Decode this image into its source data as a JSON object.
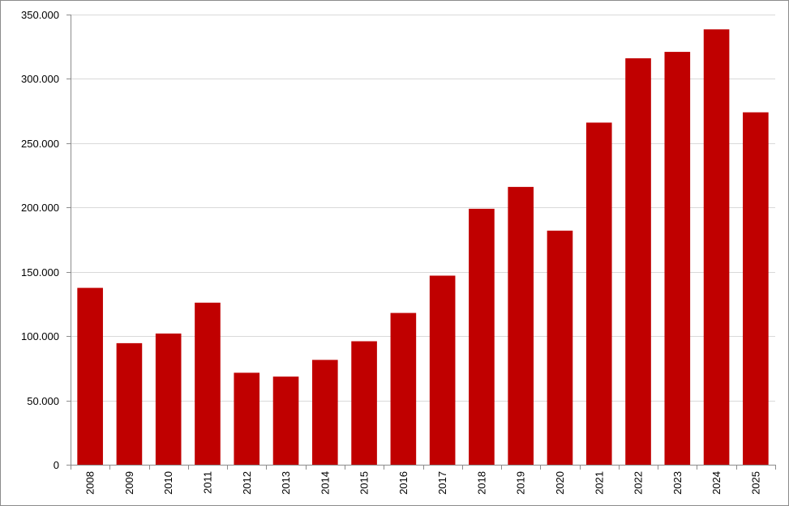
{
  "chart_data": {
    "type": "bar",
    "title": "",
    "xlabel": "",
    "ylabel": "",
    "categories": [
      "2008",
      "2009",
      "2010",
      "2011",
      "2012",
      "2013",
      "2014",
      "2015",
      "2016",
      "2017",
      "2018",
      "2019",
      "2020",
      "2021",
      "2022",
      "2023",
      "2024",
      "2025"
    ],
    "values": [
      137500,
      94500,
      102000,
      126000,
      71500,
      68500,
      81500,
      96000,
      118000,
      147000,
      199000,
      216000,
      182000,
      266000,
      316000,
      321000,
      338500,
      274000
    ],
    "ylim": [
      0,
      350000
    ],
    "yticks": [
      0,
      50000,
      100000,
      150000,
      200000,
      250000,
      300000,
      350000
    ],
    "ytick_labels": [
      "0",
      "50.000",
      "100.000",
      "150.000",
      "200.000",
      "250.000",
      "300.000",
      "350.000"
    ],
    "bar_color": "#c00000",
    "grid": true,
    "grid_color": "#d9d9d9",
    "legend": false
  }
}
